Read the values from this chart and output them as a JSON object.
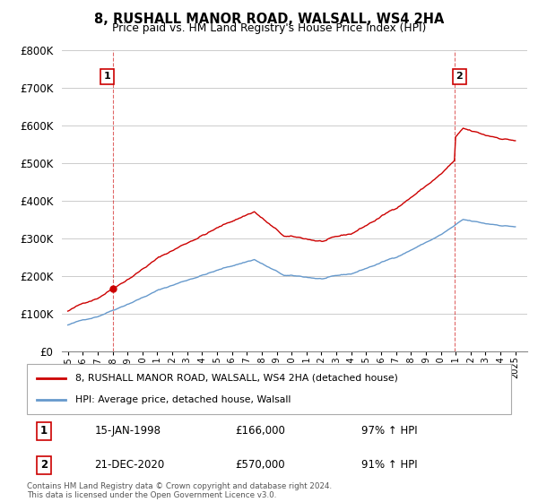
{
  "title": "8, RUSHALL MANOR ROAD, WALSALL, WS4 2HA",
  "subtitle": "Price paid vs. HM Land Registry's House Price Index (HPI)",
  "legend_line1": "8, RUSHALL MANOR ROAD, WALSALL, WS4 2HA (detached house)",
  "legend_line2": "HPI: Average price, detached house, Walsall",
  "transaction1_date": "15-JAN-1998",
  "transaction1_price": "£166,000",
  "transaction1_hpi": "97% ↑ HPI",
  "transaction2_date": "21-DEC-2020",
  "transaction2_price": "£570,000",
  "transaction2_hpi": "91% ↑ HPI",
  "copyright": "Contains HM Land Registry data © Crown copyright and database right 2024.\nThis data is licensed under the Open Government Licence v3.0.",
  "red_color": "#cc0000",
  "blue_color": "#6699cc",
  "background_color": "#ffffff",
  "grid_color": "#cccccc",
  "ylim_min": 0,
  "ylim_max": 800000
}
